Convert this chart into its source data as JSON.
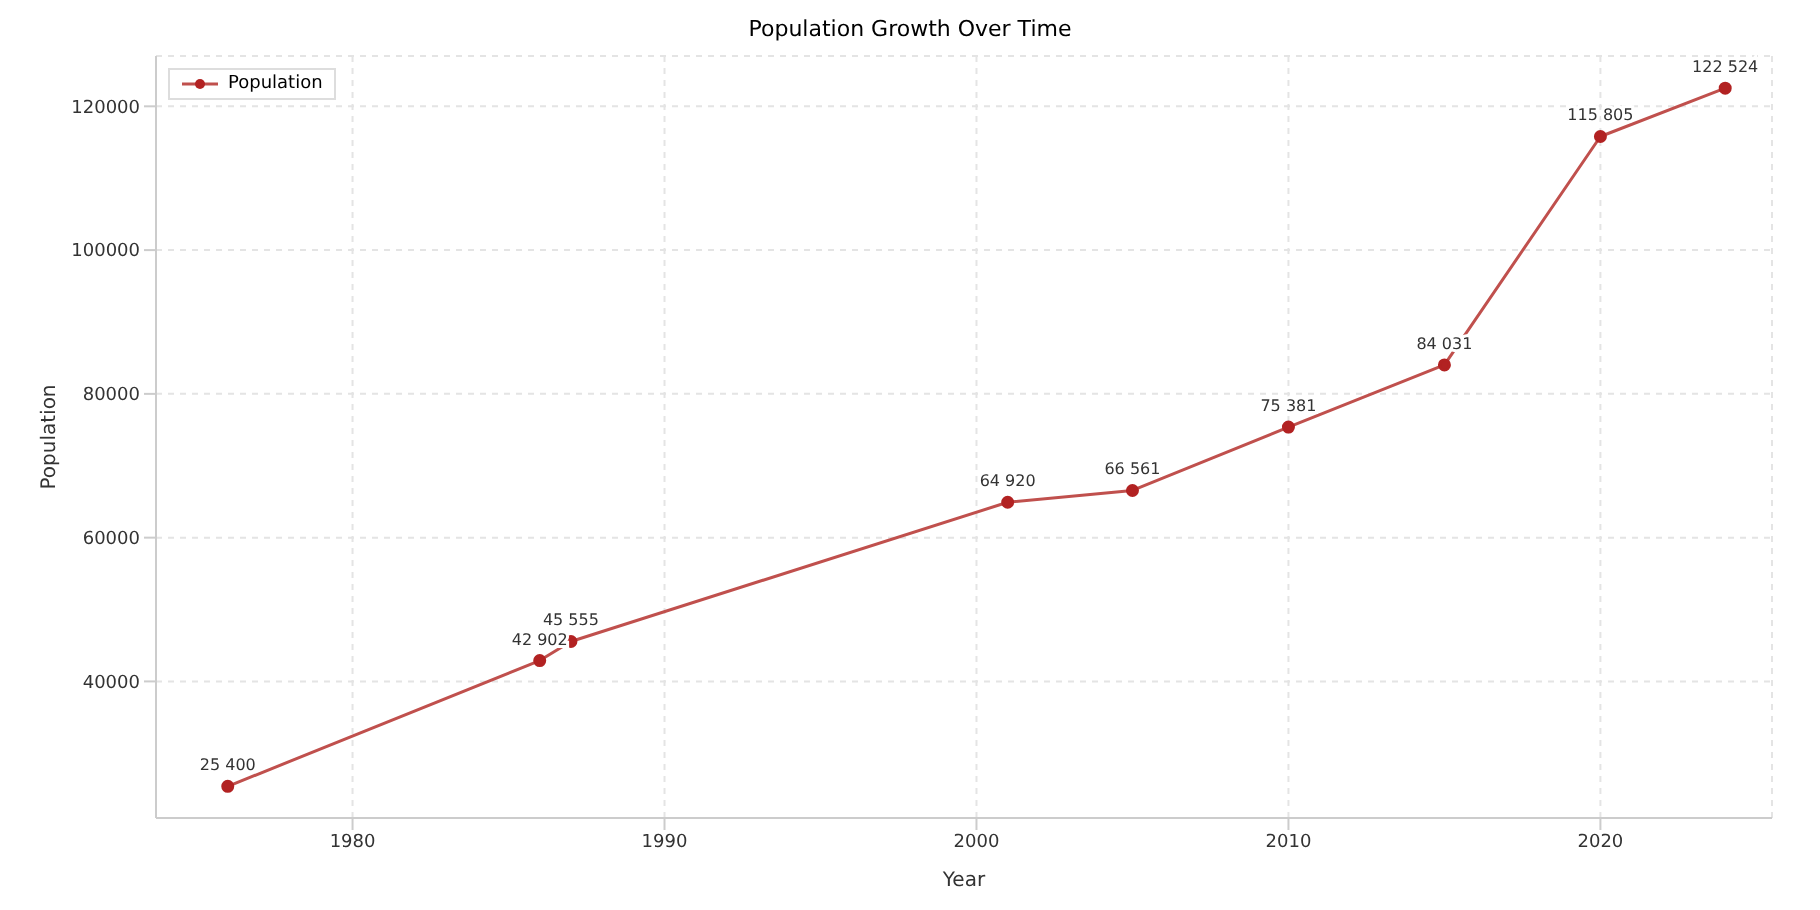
{
  "chart_data": {
    "type": "line",
    "title": "Population Growth Over Time",
    "xlabel": "Year",
    "ylabel": "Population",
    "x": [
      1976,
      1986,
      1987,
      2001,
      2005,
      2010,
      2015,
      2020,
      2024
    ],
    "series": [
      {
        "name": "Population",
        "color": "#c0504d",
        "values": [
          25400,
          42902,
          45555,
          64920,
          66561,
          75381,
          84031,
          115805,
          122524
        ],
        "value_labels": [
          "25 400",
          "42 902",
          "45 555",
          "64 920",
          "66 561",
          "75 381",
          "84 031",
          "115 805",
          "122 524"
        ]
      }
    ],
    "xlim": [
      1973.7,
      2025.5
    ],
    "xticks": [
      1980,
      1990,
      2000,
      2010,
      2020
    ],
    "ylim": [
      21000,
      127000
    ],
    "yticks": [
      40000,
      60000,
      80000,
      100000,
      120000
    ],
    "grid": true,
    "legend": "top left",
    "marker": "circle",
    "line_style": "solid"
  }
}
